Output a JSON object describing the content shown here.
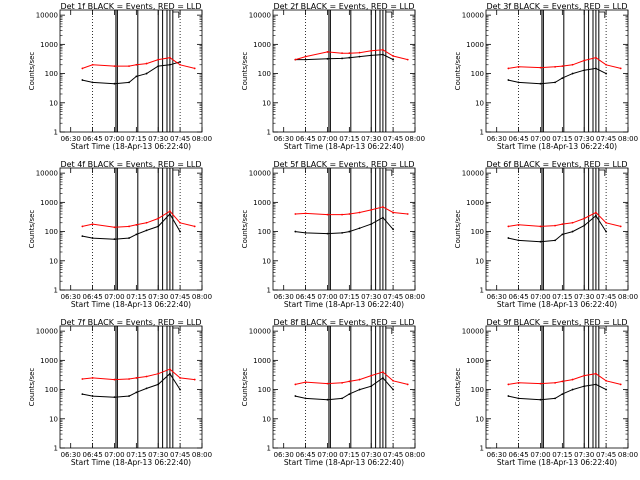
{
  "colors": {
    "events": "#000000",
    "lld": "#ff0000",
    "axes": "#000000",
    "background": "#ffffff"
  },
  "common": {
    "ylabel": "Counts/sec",
    "xlabel": "Start Time (18-Apr-13 06:22:40)",
    "xticks": [
      "06:30",
      "06:45",
      "07:00",
      "07:15",
      "07:30",
      "07:45",
      "08:00"
    ],
    "yticks": [
      "1",
      "10",
      "100",
      "1000",
      "10000"
    ]
  },
  "chart_data": [
    {
      "type": "line",
      "title": "Det 1f BLACK = Events, RED = LLD",
      "x": [
        "06:38",
        "06:45",
        "07:00",
        "07:10",
        "07:15",
        "07:22",
        "07:30",
        "07:38",
        "07:45",
        "07:55"
      ],
      "series": [
        {
          "name": "Events",
          "color": "#000000",
          "values": [
            60,
            50,
            45,
            50,
            80,
            100,
            180,
            200,
            250,
            null
          ]
        },
        {
          "name": "LLD",
          "color": "#ff0000",
          "values": [
            150,
            200,
            180,
            180,
            200,
            220,
            300,
            350,
            200,
            150
          ]
        }
      ],
      "ylim": [
        1,
        15000
      ],
      "yscale": "log",
      "xlim": [
        "06:22:40",
        "08:00"
      ],
      "grid": false
    },
    {
      "type": "line",
      "title": "Det 2f BLACK = Events, RED = LLD",
      "x": [
        "06:38",
        "06:45",
        "07:00",
        "07:10",
        "07:15",
        "07:22",
        "07:30",
        "07:38",
        "07:45",
        "07:55"
      ],
      "series": [
        {
          "name": "Events",
          "color": "#000000",
          "values": [
            300,
            300,
            320,
            330,
            350,
            380,
            420,
            450,
            300,
            null
          ]
        },
        {
          "name": "LLD",
          "color": "#ff0000",
          "values": [
            300,
            380,
            550,
            500,
            500,
            520,
            600,
            650,
            400,
            300
          ]
        }
      ],
      "ylim": [
        1,
        15000
      ],
      "yscale": "log",
      "xlim": [
        "06:22:40",
        "08:00"
      ],
      "grid": false
    },
    {
      "type": "line",
      "title": "Det 3f BLACK = Events, RED = LLD",
      "x": [
        "06:38",
        "06:45",
        "07:00",
        "07:10",
        "07:15",
        "07:22",
        "07:30",
        "07:38",
        "07:45",
        "07:55"
      ],
      "series": [
        {
          "name": "Events",
          "color": "#000000",
          "values": [
            60,
            50,
            45,
            50,
            70,
            100,
            130,
            150,
            100,
            null
          ]
        },
        {
          "name": "LLD",
          "color": "#ff0000",
          "values": [
            150,
            170,
            160,
            170,
            180,
            200,
            280,
            350,
            200,
            150
          ]
        }
      ],
      "ylim": [
        1,
        15000
      ],
      "yscale": "log",
      "xlim": [
        "06:22:40",
        "08:00"
      ],
      "grid": false
    },
    {
      "type": "line",
      "title": "Det 4f BLACK = Events, RED = LLD",
      "x": [
        "06:38",
        "06:45",
        "07:00",
        "07:10",
        "07:15",
        "07:22",
        "07:30",
        "07:38",
        "07:45",
        "07:55"
      ],
      "series": [
        {
          "name": "Events",
          "color": "#000000",
          "values": [
            70,
            60,
            55,
            60,
            80,
            110,
            150,
            400,
            100,
            null
          ]
        },
        {
          "name": "LLD",
          "color": "#ff0000",
          "values": [
            150,
            180,
            140,
            150,
            170,
            200,
            280,
            500,
            200,
            150
          ]
        }
      ],
      "ylim": [
        1,
        15000
      ],
      "yscale": "log",
      "xlim": [
        "06:22:40",
        "08:00"
      ],
      "grid": false
    },
    {
      "type": "line",
      "title": "Det 5f BLACK = Events, RED = LLD",
      "x": [
        "06:38",
        "06:45",
        "07:00",
        "07:10",
        "07:15",
        "07:22",
        "07:30",
        "07:38",
        "07:45",
        "07:55"
      ],
      "series": [
        {
          "name": "Events",
          "color": "#000000",
          "values": [
            100,
            90,
            85,
            90,
            100,
            130,
            180,
            300,
            120,
            null
          ]
        },
        {
          "name": "LLD",
          "color": "#ff0000",
          "values": [
            400,
            420,
            380,
            380,
            400,
            450,
            550,
            700,
            450,
            400
          ]
        }
      ],
      "ylim": [
        1,
        15000
      ],
      "yscale": "log",
      "xlim": [
        "06:22:40",
        "08:00"
      ],
      "grid": false
    },
    {
      "type": "line",
      "title": "Det 6f BLACK = Events, RED = LLD",
      "x": [
        "06:38",
        "06:45",
        "07:00",
        "07:10",
        "07:15",
        "07:22",
        "07:30",
        "07:38",
        "07:45",
        "07:55"
      ],
      "series": [
        {
          "name": "Events",
          "color": "#000000",
          "values": [
            60,
            50,
            45,
            50,
            80,
            100,
            160,
            350,
            100,
            null
          ]
        },
        {
          "name": "LLD",
          "color": "#ff0000",
          "values": [
            150,
            170,
            150,
            160,
            180,
            200,
            280,
            450,
            200,
            150
          ]
        }
      ],
      "ylim": [
        1,
        15000
      ],
      "yscale": "log",
      "xlim": [
        "06:22:40",
        "08:00"
      ],
      "grid": false
    },
    {
      "type": "line",
      "title": "Det 7f BLACK = Events, RED = LLD",
      "x": [
        "06:38",
        "06:45",
        "07:00",
        "07:10",
        "07:15",
        "07:22",
        "07:30",
        "07:38",
        "07:45",
        "07:55"
      ],
      "series": [
        {
          "name": "Events",
          "color": "#000000",
          "values": [
            70,
            60,
            55,
            60,
            80,
            110,
            150,
            350,
            100,
            null
          ]
        },
        {
          "name": "LLD",
          "color": "#ff0000",
          "values": [
            230,
            250,
            220,
            230,
            250,
            280,
            350,
            500,
            250,
            220
          ]
        }
      ],
      "ylim": [
        1,
        15000
      ],
      "yscale": "log",
      "xlim": [
        "06:22:40",
        "08:00"
      ],
      "grid": false
    },
    {
      "type": "line",
      "title": "Det 8f BLACK = Events, RED = LLD",
      "x": [
        "06:38",
        "06:45",
        "07:00",
        "07:10",
        "07:15",
        "07:22",
        "07:30",
        "07:38",
        "07:45",
        "07:55"
      ],
      "series": [
        {
          "name": "Events",
          "color": "#000000",
          "values": [
            60,
            50,
            45,
            50,
            70,
            100,
            130,
            250,
            100,
            null
          ]
        },
        {
          "name": "LLD",
          "color": "#ff0000",
          "values": [
            150,
            180,
            160,
            170,
            190,
            220,
            300,
            400,
            200,
            150
          ]
        }
      ],
      "ylim": [
        1,
        15000
      ],
      "yscale": "log",
      "xlim": [
        "06:22:40",
        "08:00"
      ],
      "grid": false
    },
    {
      "type": "line",
      "title": "Det 9f BLACK = Events, RED = LLD",
      "x": [
        "06:38",
        "06:45",
        "07:00",
        "07:10",
        "07:15",
        "07:22",
        "07:30",
        "07:38",
        "07:45",
        "07:55"
      ],
      "series": [
        {
          "name": "Events",
          "color": "#000000",
          "values": [
            60,
            50,
            45,
            50,
            70,
            100,
            130,
            150,
            100,
            null
          ]
        },
        {
          "name": "LLD",
          "color": "#ff0000",
          "values": [
            150,
            170,
            160,
            170,
            190,
            220,
            300,
            350,
            200,
            150
          ]
        }
      ],
      "ylim": [
        1,
        15000
      ],
      "yscale": "log",
      "xlim": [
        "06:22:40",
        "08:00"
      ],
      "grid": false
    }
  ]
}
